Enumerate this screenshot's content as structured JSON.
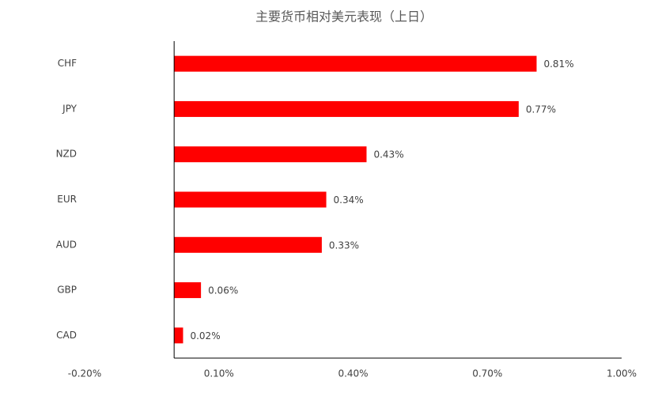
{
  "chart_data": {
    "type": "hbar",
    "title": "主要货币相对美元表现（上日）",
    "categories": [
      "CHF",
      "JPY",
      "NZD",
      "EUR",
      "AUD",
      "GBP",
      "CAD"
    ],
    "values": [
      0.81,
      0.77,
      0.43,
      0.34,
      0.33,
      0.06,
      0.02
    ],
    "value_labels": [
      "0.81%",
      "0.77%",
      "0.43%",
      "0.34%",
      "0.33%",
      "0.06%",
      "0.02%"
    ],
    "color": "#ff0000",
    "xlim": [
      -0.2,
      1.0
    ],
    "xticks": [
      {
        "value": -0.2,
        "label": "-0.20%"
      },
      {
        "value": 0.1,
        "label": "0.10%"
      },
      {
        "value": 0.4,
        "label": "0.40%"
      },
      {
        "value": 0.7,
        "label": "0.70%"
      },
      {
        "value": 1.0,
        "label": "1.00%"
      }
    ],
    "grid": false
  }
}
